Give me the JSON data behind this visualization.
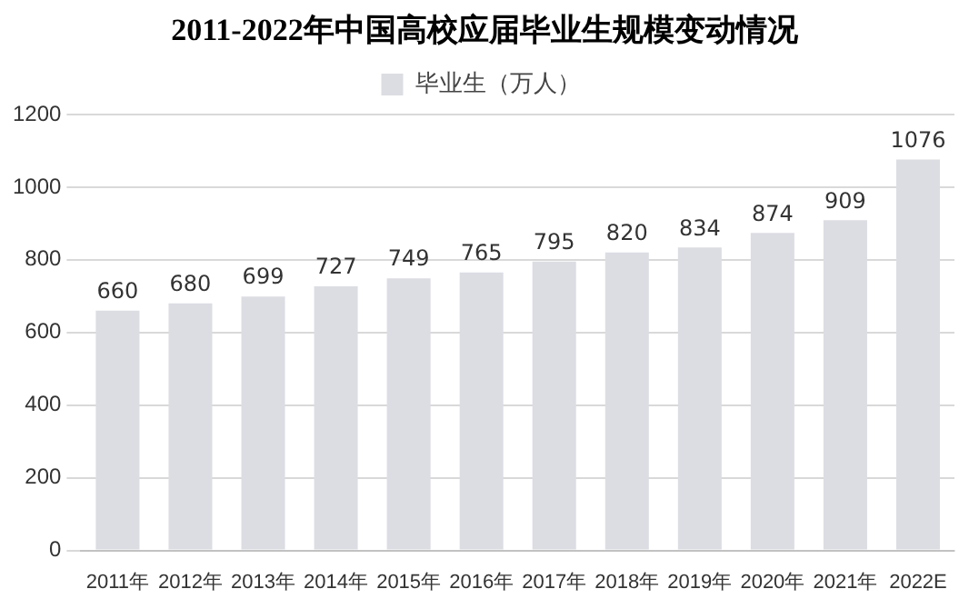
{
  "chart_data": {
    "type": "bar",
    "title": "2011-2022年中国高校应届毕业生规模变动情况",
    "categories": [
      "2011年",
      "2012年",
      "2013年",
      "2014年",
      "2015年",
      "2016年",
      "2017年",
      "2018年",
      "2019年",
      "2020年",
      "2021年",
      "2022E"
    ],
    "series": [
      {
        "name": "毕业生（万人）",
        "color": "#dcdde3",
        "values": [
          660,
          680,
          699,
          727,
          749,
          765,
          795,
          820,
          834,
          874,
          909,
          1076
        ]
      }
    ],
    "ylim": [
      0,
      1200
    ],
    "yticks": [
      0,
      200,
      400,
      600,
      800,
      1000,
      1200
    ],
    "grid": "y",
    "legend": "top",
    "data_labels": true
  }
}
